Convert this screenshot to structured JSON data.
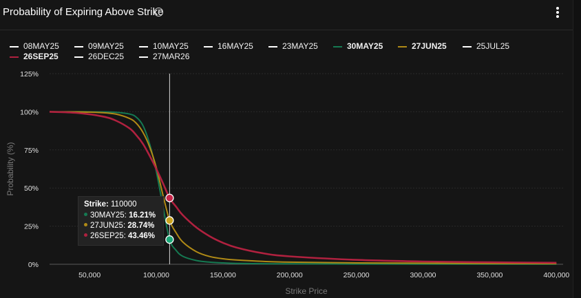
{
  "title": "Probability of Expiring Above Strike",
  "icons": {
    "info": "info-icon",
    "menu": "more-vertical-icon"
  },
  "legend": [
    {
      "label": "08MAY25",
      "color": "#ffffff",
      "bold": false
    },
    {
      "label": "09MAY25",
      "color": "#ffffff",
      "bold": false
    },
    {
      "label": "10MAY25",
      "color": "#ffffff",
      "bold": false
    },
    {
      "label": "16MAY25",
      "color": "#ffffff",
      "bold": false
    },
    {
      "label": "23MAY25",
      "color": "#ffffff",
      "bold": false
    },
    {
      "label": "30MAY25",
      "color": "#157a52",
      "bold": true
    },
    {
      "label": "27JUN25",
      "color": "#b08a16",
      "bold": true
    },
    {
      "label": "25JUL25",
      "color": "#ffffff",
      "bold": false
    },
    {
      "label": "26SEP25",
      "color": "#b0213f",
      "bold": true
    },
    {
      "label": "26DEC25",
      "color": "#ffffff",
      "bold": false
    },
    {
      "label": "27MAR26",
      "color": "#ffffff",
      "bold": false
    }
  ],
  "tooltip": {
    "strike_label": "Strike:",
    "strike_value": "110000",
    "rows": [
      {
        "label": "30MAY25:",
        "value": "16.21%",
        "color": "#157a52"
      },
      {
        "label": "27JUN25:",
        "value": "28.74%",
        "color": "#b08a16"
      },
      {
        "label": "26SEP25:",
        "value": "43.46%",
        "color": "#b0213f"
      }
    ]
  },
  "chart_data": {
    "type": "line",
    "title": "Probability of Expiring Above Strike",
    "xlabel": "Strike Price",
    "ylabel": "Probability (%)",
    "xlim": [
      20000,
      405000
    ],
    "ylim": [
      0,
      125
    ],
    "xticks": [
      50000,
      100000,
      150000,
      200000,
      250000,
      300000,
      350000,
      400000
    ],
    "xtick_labels": [
      "50,000",
      "100,000",
      "150,000",
      "200,000",
      "250,000",
      "300,000",
      "350,000",
      "400,000"
    ],
    "yticks": [
      0,
      25,
      50,
      75,
      100,
      125
    ],
    "ytick_labels": [
      "0%",
      "25%",
      "50%",
      "75%",
      "100%",
      "125%"
    ],
    "grid": true,
    "legend_position": "top",
    "cursor_x": 110000,
    "x": [
      20000,
      40000,
      60000,
      70000,
      80000,
      85000,
      90000,
      95000,
      100000,
      105000,
      110000,
      115000,
      120000,
      130000,
      140000,
      150000,
      160000,
      180000,
      200000,
      250000,
      300000,
      350000,
      400000
    ],
    "series": [
      {
        "name": "30MAY25",
        "color": "#157a52",
        "values": [
          100,
          100,
          99.9,
          99.6,
          98.5,
          96.5,
          91,
          79,
          61,
          38,
          16.21,
          9,
          5.2,
          2.5,
          1.4,
          0.9,
          0.6,
          0.4,
          0.3,
          0.2,
          0.1,
          0.1,
          0.1
        ]
      },
      {
        "name": "27JUN25",
        "color": "#b08a16",
        "values": [
          100,
          99.9,
          99.4,
          98.4,
          95.6,
          92.5,
          86.5,
          77,
          63.5,
          45.5,
          28.74,
          20.5,
          14.5,
          8.3,
          5.1,
          3.6,
          2.8,
          1.9,
          1.4,
          0.9,
          0.7,
          0.5,
          0.4
        ]
      },
      {
        "name": "26SEP25",
        "color": "#b0213f",
        "values": [
          100,
          99.3,
          96.9,
          94.1,
          89.1,
          84.7,
          79,
          71.2,
          62.6,
          53.2,
          43.46,
          37.6,
          32.1,
          24.2,
          18.4,
          14.1,
          11,
          7.2,
          5.2,
          2.9,
          1.8,
          1.3,
          1
        ]
      }
    ]
  }
}
